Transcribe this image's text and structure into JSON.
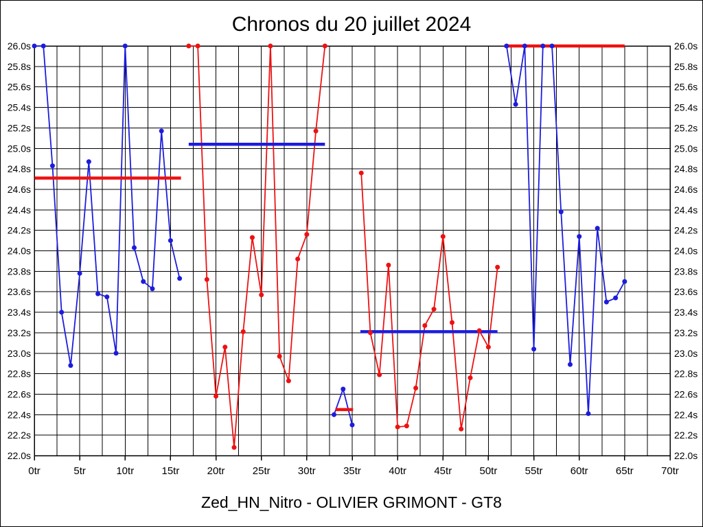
{
  "window": {
    "background": "#ffffff",
    "border_color": "#000000"
  },
  "header": {
    "title": "Chronos du 20 juillet 2024"
  },
  "footer": {
    "label": "Zed_HN_Nitro - OLIVIER GRIMONT - GT8"
  },
  "chart_data": {
    "type": "line",
    "title": "Chronos du 20 juillet 2024",
    "xlabel": "",
    "ylabel": "",
    "x_unit": "tr",
    "y_unit": "s",
    "xlim": [
      0,
      70
    ],
    "ylim": [
      22.0,
      26.0
    ],
    "x_grid_step": 2.5,
    "x_tick_step": 5,
    "y_step": 0.2,
    "grid": "on",
    "x_tick_labels": [
      "0tr",
      "5tr",
      "10tr",
      "15tr",
      "20tr",
      "25tr",
      "30tr",
      "35tr",
      "40tr",
      "45tr",
      "50tr",
      "55tr",
      "60tr",
      "65tr",
      "70tr"
    ],
    "y_tick_labels": [
      "26.0s",
      "25.8s",
      "25.6s",
      "25.4s",
      "25.2s",
      "25.0s",
      "24.8s",
      "24.6s",
      "24.4s",
      "24.2s",
      "24.0s",
      "23.8s",
      "23.6s",
      "23.4s",
      "23.2s",
      "23.0s",
      "22.8s",
      "22.6s",
      "22.4s",
      "22.2s",
      "22.0s"
    ],
    "colors": {
      "blue": "#1c1cdd",
      "red": "#ee1111",
      "grid": "#000000",
      "text": "#000000"
    },
    "series": [
      {
        "name": "relay-1-blue",
        "color": "blue",
        "start_lap": 0,
        "values": [
          26.0,
          26.0,
          24.83,
          23.4,
          22.88,
          23.78,
          24.87,
          23.58,
          23.55,
          23.0,
          26.0,
          24.03,
          23.7,
          23.63,
          25.17,
          24.1,
          23.73
        ]
      },
      {
        "name": "relay-2-red",
        "color": "red",
        "start_lap": 17,
        "values": [
          26.0,
          26.0,
          23.72,
          22.58,
          23.06,
          22.08,
          23.21,
          24.13,
          23.57,
          26.0,
          22.97,
          22.73,
          23.92,
          24.16,
          25.17,
          26.0
        ]
      },
      {
        "name": "relay-3-blue",
        "color": "blue",
        "start_lap": 33,
        "values": [
          22.4,
          22.65,
          22.3
        ]
      },
      {
        "name": "relay-4-red",
        "color": "red",
        "start_lap": 36,
        "values": [
          24.76,
          23.2,
          22.79,
          23.86,
          22.28,
          22.29,
          22.66,
          23.27,
          23.43,
          24.14,
          23.3,
          22.26,
          22.76,
          23.22,
          23.06,
          23.84
        ]
      },
      {
        "name": "relay-5-blue",
        "color": "blue",
        "start_lap": 52,
        "values": [
          26.0,
          25.43,
          26.0,
          23.04,
          26.0,
          26.0,
          24.38,
          22.89,
          24.14,
          22.41,
          24.22,
          23.5,
          23.54,
          23.7
        ]
      }
    ],
    "reference_lines": [
      {
        "name": "ref-relay-1",
        "color": "red",
        "value": 24.71,
        "from_lap": 0.05,
        "to_lap": 16.15
      },
      {
        "name": "ref-relay-2",
        "color": "blue",
        "value": 25.04,
        "from_lap": 17.0,
        "to_lap": 32.0
      },
      {
        "name": "ref-relay-3",
        "color": "red",
        "value": 22.45,
        "from_lap": 33.15,
        "to_lap": 35.1
      },
      {
        "name": "ref-relay-4",
        "color": "blue",
        "value": 23.21,
        "from_lap": 35.9,
        "to_lap": 51.0
      },
      {
        "name": "ref-relay-5",
        "color": "red",
        "value": 26.0,
        "from_lap": 51.75,
        "to_lap": 65.0
      }
    ]
  }
}
